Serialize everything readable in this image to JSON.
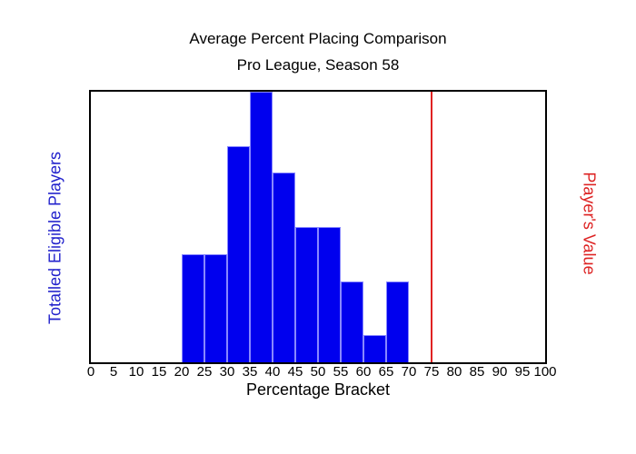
{
  "title": {
    "line1": "Average Percent Placing Comparison",
    "line2": "Pro League, Season 58"
  },
  "axes": {
    "x_label": "Percentage Bracket",
    "y_left_label": "Totalled Eligible Players",
    "y_right_label": "Player's Value"
  },
  "colors": {
    "bar_fill": "#0000ee",
    "bar_edge": "#8888ff",
    "left_label": "#2222cc",
    "right_label": "#dd2222",
    "reference_line": "#e02222",
    "axis": "#000000",
    "background": "#ffffff"
  },
  "chart_data": {
    "type": "bar",
    "subtype": "histogram",
    "title": "Average Percent Placing Comparison",
    "subtitle": "Pro League, Season 58",
    "xlabel": "Percentage Bracket",
    "ylabel_left": "Totalled Eligible Players",
    "ylabel_right": "Player's Value",
    "x_ticks": [
      0,
      5,
      10,
      15,
      20,
      25,
      30,
      35,
      40,
      45,
      50,
      55,
      60,
      65,
      70,
      75,
      80,
      85,
      90,
      95,
      100
    ],
    "xlim": [
      0,
      100
    ],
    "ylim": [
      0,
      10
    ],
    "y_ticks_shown": false,
    "grid": false,
    "legend": false,
    "bin_width": 5,
    "bins": [
      {
        "range": [
          20,
          25
        ],
        "value": 4
      },
      {
        "range": [
          25,
          30
        ],
        "value": 4
      },
      {
        "range": [
          30,
          35
        ],
        "value": 8
      },
      {
        "range": [
          35,
          40
        ],
        "value": 10
      },
      {
        "range": [
          40,
          45
        ],
        "value": 7
      },
      {
        "range": [
          45,
          50
        ],
        "value": 5
      },
      {
        "range": [
          50,
          55
        ],
        "value": 5
      },
      {
        "range": [
          55,
          60
        ],
        "value": 3
      },
      {
        "range": [
          60,
          65
        ],
        "value": 1
      },
      {
        "range": [
          65,
          70
        ],
        "value": 3
      }
    ],
    "reference_line": {
      "x": 75,
      "label": "Player's Value"
    }
  }
}
